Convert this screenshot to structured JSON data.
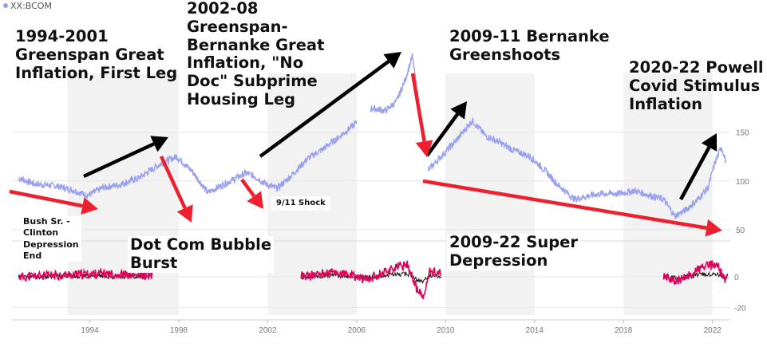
{
  "header": {
    "ticker": "XX:BCOM"
  },
  "annotations": {
    "leg1994": "1994-2001\nGreenspan Great\nInflation, First Leg",
    "leg2002": "2002-08\nGreenspan-\nBernanke Great\nInflation, \"No\nDoc\" Subprime\nHousing Leg",
    "greenshoots": "2009-11 Bernanke\nGreenshoots",
    "powell": "2020-22 Powell\nCovid Stimulus\nInflation",
    "bush": "Bush Sr. -\nClinton\nDepression\nEnd",
    "dotcom": "Dot Com Bubble\nBurst",
    "nineeleven": "9/11 Shock",
    "superdepression": "2009-22 Super\nDepression"
  },
  "colors": {
    "price_line": "#9aa0f0",
    "arrow_up": "#000000",
    "arrow_down": "#ee2030",
    "osc_fast": "#e0005a",
    "osc_slow": "#111111",
    "band": "#f2f2f2",
    "grid": "#e6e6e6"
  },
  "chart_data": [
    {
      "type": "line",
      "series": [
        {
          "x": [
            1990.8,
            1991.5,
            1992.5,
            1993.3,
            1993.9,
            1994.6,
            1995.3,
            1996.2,
            1996.8,
            1997.3,
            1997.9,
            1998.6,
            1999.3,
            1999.9,
            2000.5,
            2001.0,
            2001.4,
            2001.9,
            2002.4,
            2003.0,
            2003.8,
            2004.5,
            2005.2,
            2005.9,
            2006.6,
            2007.3,
            2007.8,
            2008.2,
            2008.5,
            2008.8,
            2009.1,
            2009.5,
            2010.0,
            2010.5,
            2011.2,
            2011.8,
            2012.4,
            2013.0,
            2013.8,
            2014.5,
            2015.0,
            2015.8,
            2016.3,
            2017.0,
            2017.8,
            2018.5,
            2019.2,
            2019.8,
            2020.3,
            2020.8,
            2021.3,
            2021.8,
            2022.1,
            2022.4,
            2022.6
          ],
          "y": [
            103,
            97,
            95,
            90,
            85,
            93,
            96,
            103,
            112,
            119,
            125,
            110,
            88,
            95,
            102,
            108,
            105,
            97,
            92,
            104,
            123,
            133,
            145,
            158,
            175,
            172,
            182,
            205,
            228,
            180,
            108,
            118,
            130,
            142,
            162,
            146,
            140,
            132,
            125,
            110,
            97,
            81,
            84,
            87,
            87,
            90,
            85,
            81,
            64,
            70,
            80,
            93,
            118,
            135,
            120
          ]
        }
      ],
      "yticks": [
        50,
        100,
        150
      ],
      "xtick_labels": [
        "1994",
        "1998",
        "2002",
        "2006",
        "2010",
        "2014",
        "2018",
        "2022"
      ],
      "xticks": [
        1994,
        1998,
        2002,
        2006,
        2010,
        2014,
        2018,
        2022
      ],
      "xlim": [
        1990.5,
        2022.8
      ],
      "ylim": [
        40,
        235
      ],
      "shaded_ranges": [
        [
          1993.0,
          1994.0
        ],
        [
          1994.0,
          1998.0
        ],
        [
          2002.0,
          2006.0
        ],
        [
          2010.0,
          2014.0
        ],
        [
          2018.0,
          2022.0
        ]
      ],
      "gaps": [
        [
          2006.0,
          2006.6
        ],
        [
          2008.9,
          2009.2
        ]
      ]
    },
    {
      "type": "line",
      "series": [
        {
          "name": "fast",
          "x": [
            1991,
            1994.5,
            1996,
            2003.5,
            2005,
            2006.5,
            2007.5,
            2008.3,
            2008.7,
            2009.0,
            2009.3,
            2009.8,
            2019.8,
            2020.5,
            2021.5,
            2022.2,
            2022.6
          ],
          "y": [
            0,
            2,
            1,
            0,
            3,
            -2,
            5,
            8,
            -8,
            -14,
            4,
            2,
            0,
            -3,
            6,
            8,
            -4
          ]
        },
        {
          "name": "slow",
          "x": [
            1991,
            1996,
            2003.5,
            2006.5,
            2008.3,
            2009.0,
            2009.8,
            2019.8,
            2022.6
          ],
          "y": [
            0,
            0,
            0,
            0,
            3,
            -5,
            0,
            0,
            1
          ]
        }
      ],
      "yticks": [
        -20,
        0
      ],
      "ylim": [
        -25,
        15
      ],
      "visible_ranges": [
        [
          1990.8,
          1996.8
        ],
        [
          2003.5,
          2009.8
        ],
        [
          2019.8,
          2022.7
        ]
      ]
    }
  ]
}
